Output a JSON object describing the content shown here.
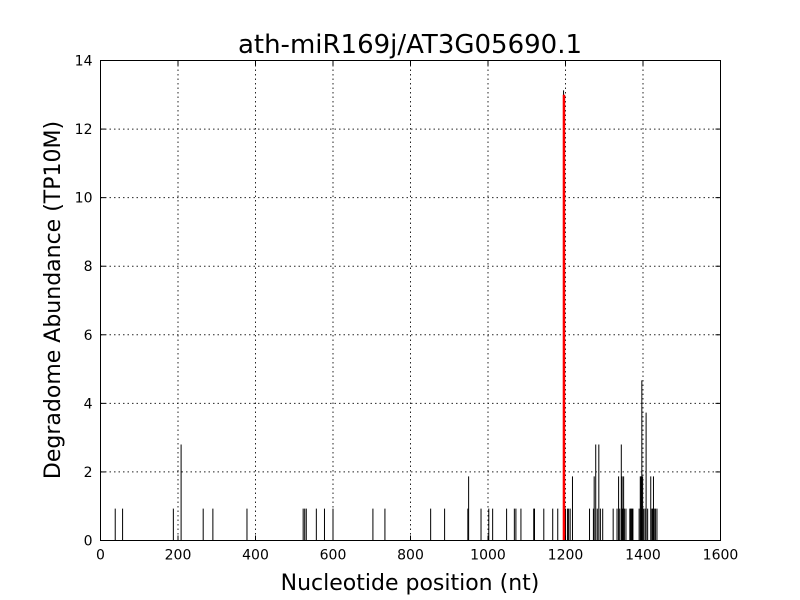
{
  "chart_data": {
    "type": "bar",
    "title": "ath-miR169j/AT3G05690.1",
    "xlabel": "Nucleotide position (nt)",
    "ylabel": "Degradome Abundance (TP10M)",
    "xlim": [
      0,
      1600
    ],
    "ylim": [
      0,
      14
    ],
    "x_ticks": [
      0,
      200,
      400,
      600,
      800,
      1000,
      1200,
      1400,
      1600
    ],
    "y_ticks": [
      0,
      2,
      4,
      6,
      8,
      10,
      12,
      14
    ],
    "grid": true,
    "series": [
      {
        "color": "#000000",
        "points": [
          [
            38,
            0.93
          ],
          [
            57,
            0.93
          ],
          [
            188,
            0.93
          ],
          [
            208,
            2.8
          ],
          [
            265,
            0.93
          ],
          [
            290,
            0.93
          ],
          [
            378,
            0.93
          ],
          [
            523,
            0.93
          ],
          [
            527,
            0.93
          ],
          [
            531,
            0.93
          ],
          [
            557,
            0.93
          ],
          [
            578,
            0.93
          ],
          [
            600,
            0.93
          ],
          [
            703,
            0.93
          ],
          [
            734,
            0.93
          ],
          [
            852,
            0.93
          ],
          [
            888,
            0.93
          ],
          [
            948,
            0.93
          ],
          [
            950,
            1.87
          ],
          [
            982,
            0.93
          ],
          [
            1002,
            0.93
          ],
          [
            1012,
            0.93
          ],
          [
            1048,
            0.93
          ],
          [
            1068,
            0.93
          ],
          [
            1072,
            0.93
          ],
          [
            1085,
            0.93
          ],
          [
            1118,
            0.93
          ],
          [
            1120,
            0.93
          ],
          [
            1144,
            0.93
          ],
          [
            1167,
            0.93
          ],
          [
            1180,
            0.93
          ],
          [
            1195,
            13.13
          ],
          [
            1200,
            0.93
          ],
          [
            1205,
            0.93
          ],
          [
            1208,
            0.93
          ],
          [
            1212,
            0.93
          ],
          [
            1218,
            1.87
          ],
          [
            1262,
            0.93
          ],
          [
            1272,
            0.93
          ],
          [
            1274,
            1.87
          ],
          [
            1278,
            2.8
          ],
          [
            1282,
            0.93
          ],
          [
            1286,
            2.8
          ],
          [
            1290,
            0.93
          ],
          [
            1296,
            0.93
          ],
          [
            1323,
            0.93
          ],
          [
            1333,
            0.93
          ],
          [
            1337,
            1.87
          ],
          [
            1340,
            0.93
          ],
          [
            1344,
            2.8
          ],
          [
            1346,
            1.87
          ],
          [
            1348,
            0.93
          ],
          [
            1350,
            1.87
          ],
          [
            1352,
            0.93
          ],
          [
            1356,
            0.93
          ],
          [
            1366,
            0.93
          ],
          [
            1368,
            0.93
          ],
          [
            1370,
            0.93
          ],
          [
            1372,
            0.93
          ],
          [
            1374,
            0.93
          ],
          [
            1390,
            0.93
          ],
          [
            1393,
            1.87
          ],
          [
            1395,
            1.87
          ],
          [
            1397,
            4.67
          ],
          [
            1399,
            1.87
          ],
          [
            1401,
            0.93
          ],
          [
            1405,
            0.93
          ],
          [
            1408,
            3.73
          ],
          [
            1412,
            0.93
          ],
          [
            1420,
            1.87
          ],
          [
            1423,
            0.93
          ],
          [
            1425,
            0.93
          ],
          [
            1427,
            1.87
          ],
          [
            1429,
            0.93
          ],
          [
            1432,
            0.93
          ],
          [
            1436,
            0.93
          ]
        ]
      },
      {
        "color": "#ff0000",
        "points": [
          [
            1196,
            13.0
          ]
        ]
      }
    ]
  }
}
